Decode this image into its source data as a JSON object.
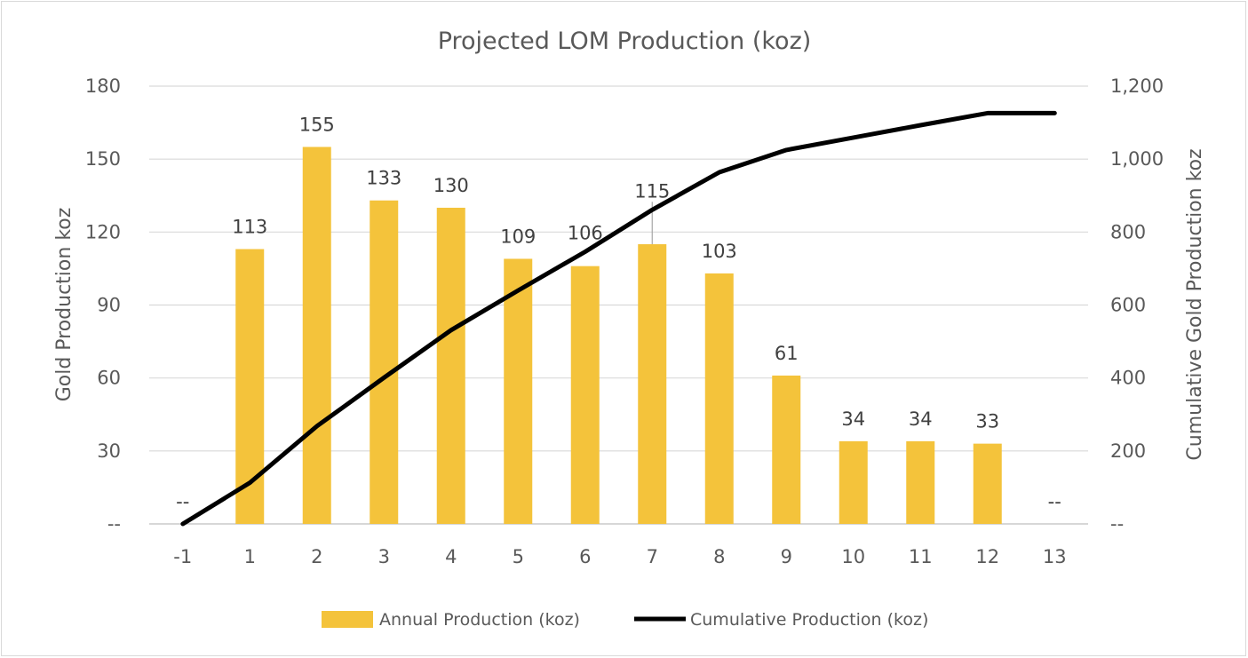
{
  "chart_data": {
    "type": "bar",
    "title": "Projected LOM Production (koz)",
    "categories": [
      "-1",
      "1",
      "2",
      "3",
      "4",
      "5",
      "6",
      "7",
      "8",
      "9",
      "10",
      "11",
      "12",
      "13"
    ],
    "series": [
      {
        "name": "Annual Production (koz)",
        "type": "bar",
        "axis": "left",
        "color": "#f4c33b",
        "values": [
          0,
          113,
          155,
          133,
          130,
          109,
          106,
          115,
          103,
          61,
          34,
          34,
          33,
          0
        ],
        "labels": [
          "--",
          "113",
          "155",
          "133",
          "130",
          "109",
          "106",
          "115",
          "103",
          "61",
          "34",
          "34",
          "33",
          "--"
        ]
      },
      {
        "name": "Cumulative Production (koz)",
        "type": "line",
        "axis": "right",
        "color": "#000000",
        "values": [
          0,
          113,
          268,
          401,
          531,
          640,
          746,
          861,
          964,
          1025,
          1059,
          1093,
          1126,
          1126
        ]
      }
    ],
    "y_left": {
      "label": "Gold Production koz",
      "ylim": [
        0,
        180
      ],
      "ticks": [
        0,
        30,
        60,
        90,
        120,
        150,
        180
      ],
      "tick_labels": [
        "--",
        "30",
        "60",
        "90",
        "120",
        "150",
        "180"
      ]
    },
    "y_right": {
      "label": "Cumulative Gold Production koz",
      "ylim": [
        0,
        1200
      ],
      "ticks": [
        0,
        200,
        400,
        600,
        800,
        1000,
        1200
      ],
      "tick_labels": [
        "--",
        "200",
        "400",
        "600",
        "800",
        "1,000",
        "1,200"
      ]
    },
    "grid": true,
    "legend": "bottom"
  }
}
